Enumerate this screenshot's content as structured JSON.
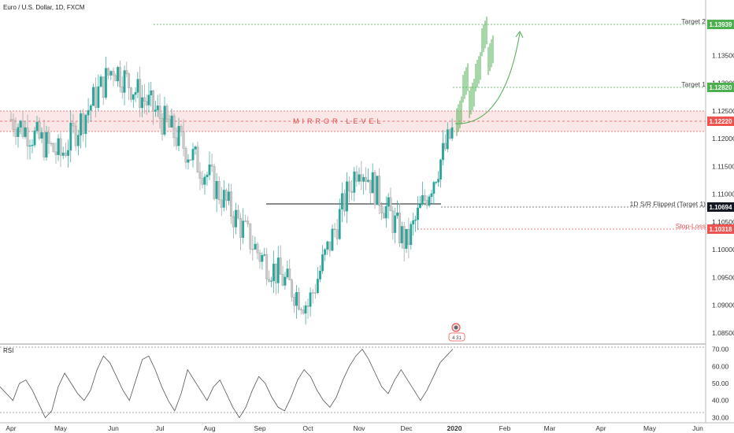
{
  "header": {
    "symbol_title": "Euro / U.S. Dollar, 1D, FXCM"
  },
  "rsi_panel": {
    "label": "RSI"
  },
  "colors": {
    "bull": "#26a69a",
    "bear": "#c8c8c8",
    "target": "#4caf50",
    "stop": "#ef5350",
    "mirror": "#f8d4d4",
    "level_line": "#131722",
    "rsi_line": "#555555"
  },
  "icons": {
    "event_marker": "dividend-event-icon"
  },
  "levels": {
    "target2": {
      "label": "Target 2",
      "price_label": "1.13939"
    },
    "target1": {
      "label": "Target 1",
      "price_label": "1.12820"
    },
    "mirror": {
      "label": "MIRROR-LEVEL",
      "price_label": "1.12220"
    },
    "flipped": {
      "label": "1D S/R Flipped (Target 1)",
      "price_label": "1.10694"
    },
    "stop": {
      "label": "Stop-Loss",
      "price_label": "1.10318"
    }
  },
  "event_marker_text": "4 31",
  "chart_data": {
    "type": "candlestick",
    "symbol": "Euro / U.S. Dollar",
    "timeframe": "1D",
    "source": "FXCM",
    "price_axis": {
      "ticks": [
        "1.13500",
        "1.13000",
        "1.12500",
        "1.12000",
        "1.11500",
        "1.11000",
        "1.10500",
        "1.10000",
        "1.09500",
        "1.09000",
        "1.08500"
      ],
      "range": [
        1.083,
        1.145
      ]
    },
    "time_axis": {
      "ticks": [
        "Apr",
        "May",
        "Jun",
        "Jul",
        "Aug",
        "Sep",
        "Oct",
        "Nov",
        "Dec",
        "2020",
        "Feb",
        "Mar",
        "Apr",
        "May",
        "Jun"
      ]
    },
    "price_path": [
      {
        "month": "Apr",
        "price": 1.1235
      },
      {
        "month": "May",
        "price": 1.117
      },
      {
        "month": "Jun",
        "price": 1.133
      },
      {
        "month": "Jul",
        "price": 1.124
      },
      {
        "month": "Aug",
        "price": 1.113
      },
      {
        "month": "Sep",
        "price": 1.099
      },
      {
        "month": "Oct",
        "price": 1.09
      },
      {
        "month": "Nov",
        "price": 1.116
      },
      {
        "month": "Dec",
        "price": 1.101
      },
      {
        "month": "2020",
        "price": 1.1222
      }
    ],
    "projection": [
      1.125,
      1.131,
      1.1282,
      1.133,
      1.1394,
      1.136
    ],
    "projection_arrow": {
      "from": 1.1222,
      "to": 1.138,
      "direction": "up"
    },
    "rsi": {
      "ticks": [
        "70.00",
        "60.00",
        "50.00",
        "40.00",
        "30.00"
      ],
      "levels": [
        70,
        30
      ],
      "range": [
        27,
        73
      ],
      "path": [
        48,
        44,
        40,
        50,
        52,
        46,
        38,
        30,
        34,
        48,
        56,
        50,
        44,
        40,
        46,
        58,
        66,
        62,
        54,
        46,
        40,
        52,
        64,
        66,
        58,
        48,
        40,
        34,
        44,
        58,
        52,
        46,
        40,
        48,
        52,
        44,
        36,
        30,
        36,
        46,
        54,
        50,
        42,
        36,
        34,
        42,
        52,
        58,
        54,
        46,
        40,
        36,
        42,
        52,
        60,
        66,
        70,
        64,
        56,
        48,
        44,
        52,
        58,
        52,
        46,
        40,
        46,
        54,
        62,
        66,
        70
      ]
    }
  }
}
